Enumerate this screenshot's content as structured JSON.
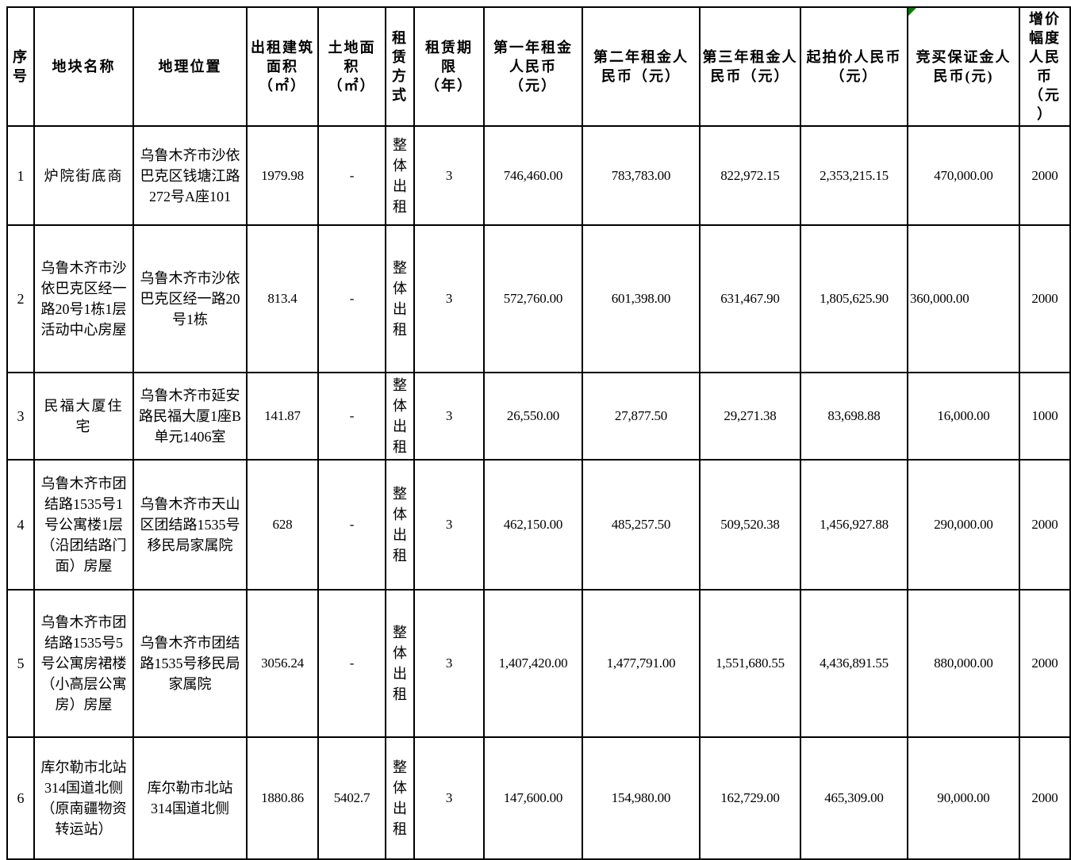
{
  "page": {
    "background": "#ffffff"
  },
  "marker": {
    "color": "#008000",
    "location": "deposit-header-top-left"
  },
  "table": {
    "border_color": "#000000",
    "column_keys": [
      "serial",
      "parcel-name",
      "location",
      "building-area",
      "land-area",
      "lease-mode",
      "lease-term",
      "rent-year1",
      "rent-year2",
      "rent-year3",
      "starting-price",
      "deposit",
      "increment"
    ],
    "header": {
      "cells": [
        "序\n号",
        "地块名称",
        "地理位置",
        "出租建筑\n面积\n（㎡）",
        "土地面\n积\n（㎡）",
        "租\n赁\n方\n式",
        "租赁期\n限\n（年）",
        "第一年租金\n人民币\n（元）",
        "第二年租金人\n民币（元）",
        "第三年租金人\n民币（元）",
        "起拍价人民币\n（元）",
        "竞买保证金人\n民币(元)",
        "增价\n幅度\n人民\n币\n（元\n）"
      ]
    },
    "rows": [
      [
        "1",
        "炉院街底商",
        "乌鲁木齐市沙依\n巴克区钱塘江路\n272号A座101",
        "1979.98",
        "-",
        "整\n体\n出\n租",
        "3",
        "746,460.00",
        "783,783.00",
        "822,972.15",
        "2,353,215.15",
        "470,000.00",
        "2000"
      ],
      [
        "2",
        "乌鲁木齐市沙\n依巴克区经一\n路20号1栋1层\n活动中心房屋",
        "乌鲁木齐市沙依\n巴克区经一路20\n号1栋",
        "813.4",
        "-",
        "整\n体\n出\n租",
        "3",
        "572,760.00",
        "601,398.00",
        "631,467.90",
        "1,805,625.90",
        "360,000.00",
        "2000"
      ],
      [
        "3",
        "民福大厦住宅",
        "乌鲁木齐市延安\n路民福大厦1座B\n单元1406室",
        "141.87",
        "-",
        "整\n体\n出\n租",
        "3",
        "26,550.00",
        "27,877.50",
        "29,271.38",
        "83,698.88",
        "16,000.00",
        "1000"
      ],
      [
        "4",
        "乌鲁木齐市团\n结路1535号1\n号公寓楼1层\n（沿团结路门\n面）房屋",
        "乌鲁木齐市天山\n区团结路1535号\n移民局家属院",
        "628",
        "-",
        "整\n体\n出\n租",
        "3",
        "462,150.00",
        "485,257.50",
        "509,520.38",
        "1,456,927.88",
        "290,000.00",
        "2000"
      ],
      [
        "5",
        "乌鲁木齐市团\n结路1535号5\n号公寓房裙楼\n（小高层公寓\n房）房屋",
        "乌鲁木齐市团结\n路1535号移民局\n家属院",
        "3056.24",
        "-",
        "整\n体\n出\n租",
        "3",
        "1,407,420.00",
        "1,477,791.00",
        "1,551,680.55",
        "4,436,891.55",
        "880,000.00",
        "2000"
      ],
      [
        "6",
        "库尔勒市北站\n314国道北侧\n（原南疆物资\n转运站）",
        "库尔勒市北站\n314国道北侧",
        "1880.86",
        "5402.7",
        "整\n体\n出\n租",
        "3",
        "147,600.00",
        "154,980.00",
        "162,729.00",
        "465,309.00",
        "90,000.00",
        "2000"
      ]
    ]
  }
}
